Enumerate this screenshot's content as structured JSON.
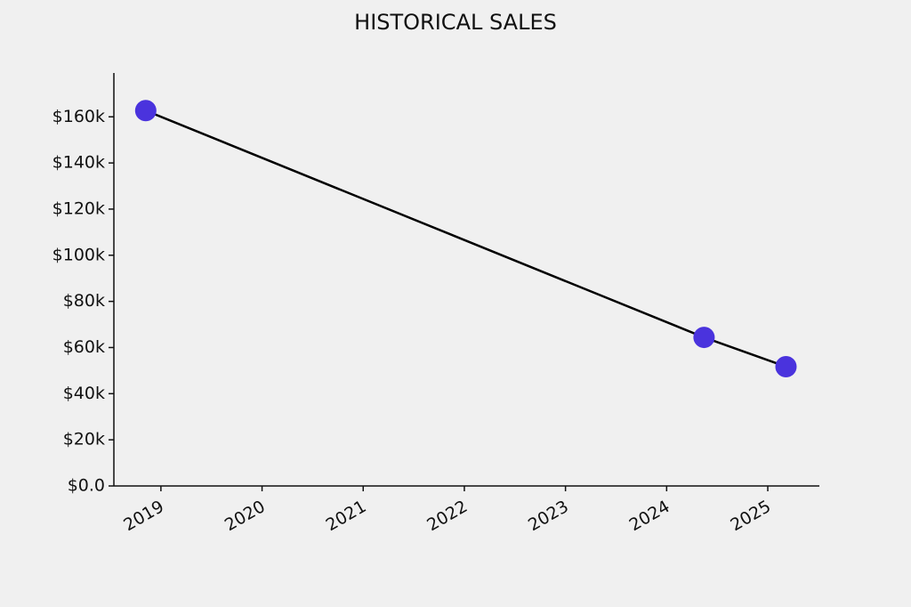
{
  "chart_data": {
    "type": "line",
    "title": "HISTORICAL SALES",
    "x": [
      2018.85,
      2024.37,
      2025.18
    ],
    "values": [
      162700,
      64400,
      51700
    ],
    "color": "#4a33dd",
    "line_color": "#000000",
    "xlim": [
      2018.535,
      2025.51
    ],
    "xticks": [
      2019,
      2020,
      2021,
      2022,
      2023,
      2024,
      2025
    ],
    "ylim": [
      0,
      179000
    ],
    "yticks": [
      {
        "value": 0,
        "label": "$0.0"
      },
      {
        "value": 20000,
        "label": "$20k"
      },
      {
        "value": 40000,
        "label": "$40k"
      },
      {
        "value": 60000,
        "label": "$60k"
      },
      {
        "value": 80000,
        "label": "$80k"
      },
      {
        "value": 100000,
        "label": "$100k"
      },
      {
        "value": 120000,
        "label": "$120k"
      },
      {
        "value": 140000,
        "label": "$140k"
      },
      {
        "value": 160000,
        "label": "$160k"
      }
    ],
    "grid": false
  }
}
